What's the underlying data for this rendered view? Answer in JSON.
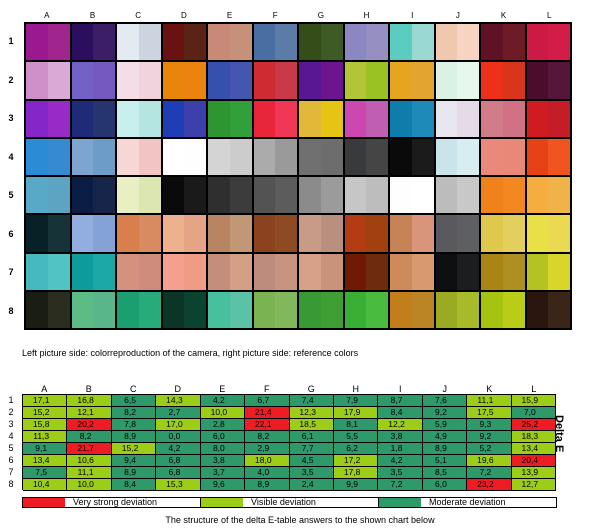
{
  "chart": {
    "columns": [
      "A",
      "B",
      "C",
      "D",
      "E",
      "F",
      "G",
      "H",
      "I",
      "J",
      "K",
      "L"
    ],
    "rows": [
      "1",
      "2",
      "3",
      "4",
      "5",
      "6",
      "7",
      "8"
    ],
    "patches": [
      [
        [
          "#9a1990",
          "#a0268e"
        ],
        [
          "#2c0e5e",
          "#3b1e66"
        ],
        [
          "#e4eaf2",
          "#ccd4df"
        ],
        [
          "#6a1111",
          "#5a2315"
        ],
        [
          "#c88a77",
          "#c79079"
        ],
        [
          "#4a6ea1",
          "#5a7ca7"
        ],
        [
          "#354d18",
          "#3e5b25"
        ],
        [
          "#8a87c2",
          "#9590c1"
        ],
        [
          "#5dccc0",
          "#9ad9d1"
        ],
        [
          "#f0c8b0",
          "#f7d3c2"
        ],
        [
          "#5e1224",
          "#6d1b26"
        ],
        [
          "#cc1a45",
          "#d41c48"
        ]
      ],
      [
        [
          "#cf8fc8",
          "#dba9d6"
        ],
        [
          "#7262c5",
          "#7559c0"
        ],
        [
          "#f3dde6",
          "#f0d3dc"
        ],
        [
          "#e8850b",
          "#ec830f"
        ],
        [
          "#3650ad",
          "#4556b0"
        ],
        [
          "#cf2b33",
          "#c93a48"
        ],
        [
          "#5a1793",
          "#6d148f"
        ],
        [
          "#b1c536",
          "#9ac223"
        ],
        [
          "#e5a520",
          "#e3a430"
        ],
        [
          "#d9f2e3",
          "#e6f8ee"
        ],
        [
          "#ec3019",
          "#d8351c"
        ],
        [
          "#4a0e2c",
          "#55163a"
        ]
      ],
      [
        [
          "#8526c8",
          "#982ac8"
        ],
        [
          "#1e2b79",
          "#263470"
        ],
        [
          "#c8eeee",
          "#b4e5e0"
        ],
        [
          "#1f3db5",
          "#3b40ab"
        ],
        [
          "#2d9630",
          "#31a03a"
        ],
        [
          "#e9253a",
          "#f03855"
        ],
        [
          "#e1b838",
          "#e6c414"
        ],
        [
          "#cc47b0",
          "#c05eb1"
        ],
        [
          "#0e7dab",
          "#1e8aba"
        ],
        [
          "#e8e7f0",
          "#e4dbe7"
        ],
        [
          "#d27c8a",
          "#d17185"
        ],
        [
          "#d01b20",
          "#c41d27"
        ]
      ],
      [
        [
          "#2b8cd5",
          "#368bd0"
        ],
        [
          "#7ea5cf",
          "#6c9cc7"
        ],
        [
          "#f8d6d6",
          "#f3c4c4"
        ],
        [
          "#ffffff",
          "#fefefe"
        ],
        [
          "#d4d4d4",
          "#cccccc"
        ],
        [
          "#ababab",
          "#9a9a9a"
        ],
        [
          "#707070",
          "#6d6d6d"
        ],
        [
          "#393a3b",
          "#454545"
        ],
        [
          "#0a0a0a",
          "#1b1b1b"
        ],
        [
          "#c9e4ea",
          "#d7edf2"
        ],
        [
          "#e9897c",
          "#e98878"
        ],
        [
          "#e54216",
          "#f05520"
        ]
      ],
      [
        [
          "#58a9c8",
          "#5ca4c2"
        ],
        [
          "#0a1e45",
          "#17254a"
        ],
        [
          "#e9eec3",
          "#dce6b1"
        ],
        [
          "#0a0a0a",
          "#1a1a1a"
        ],
        [
          "#2f2f2f",
          "#3c3c3c"
        ],
        [
          "#535353",
          "#5c5c5c"
        ],
        [
          "#8b8b8b",
          "#9b9b9b"
        ],
        [
          "#c6c6c6",
          "#bdbdbd"
        ],
        [
          "#fefefe",
          "#ffffff"
        ],
        [
          "#bcbcbc",
          "#c8c8c8"
        ],
        [
          "#f0821b",
          "#f38820"
        ],
        [
          "#f4ad3e",
          "#f0b34a"
        ]
      ],
      [
        [
          "#082126",
          "#163438"
        ],
        [
          "#92aee0",
          "#84a2d6"
        ],
        [
          "#d97e4d",
          "#d88a60"
        ],
        [
          "#ecb18d",
          "#e5a486"
        ],
        [
          "#b98462",
          "#c19776"
        ],
        [
          "#8b421f",
          "#8e4b23"
        ],
        [
          "#c89a88",
          "#b9907f"
        ],
        [
          "#b43c14",
          "#a1410f"
        ],
        [
          "#c58356",
          "#d8957b"
        ],
        [
          "#5a5a5e",
          "#5e5f62"
        ],
        [
          "#e0c84e",
          "#e3cf5b"
        ],
        [
          "#e9df47",
          "#ecd952"
        ]
      ],
      [
        [
          "#45b9bd",
          "#52c3c5"
        ],
        [
          "#0e9b9b",
          "#1ba8a7"
        ],
        [
          "#d5917d",
          "#cf8b7b"
        ],
        [
          "#f3a08e",
          "#f09b84"
        ],
        [
          "#c48f7a",
          "#d39f86"
        ],
        [
          "#be8c7d",
          "#c8937f"
        ],
        [
          "#d7a088",
          "#c9937b"
        ],
        [
          "#701905",
          "#6f2b0e"
        ],
        [
          "#cd8b5b",
          "#d79a6e"
        ],
        [
          "#0d0f10",
          "#1b1d1e"
        ],
        [
          "#a98515",
          "#ad8f22"
        ],
        [
          "#b4c322",
          "#d9d52a"
        ]
      ],
      [
        [
          "#1a1d14",
          "#2b2d1e"
        ],
        [
          "#5dbb86",
          "#59b68a"
        ],
        [
          "#1b9f70",
          "#27ab7a"
        ],
        [
          "#0d3526",
          "#0b4331"
        ],
        [
          "#47c09e",
          "#5bc2a5"
        ],
        [
          "#7ab351",
          "#80b85b"
        ],
        [
          "#379a35",
          "#3f9f35"
        ],
        [
          "#3aaf36",
          "#49bb3f"
        ],
        [
          "#c17e1a",
          "#bb8425"
        ],
        [
          "#9aaa22",
          "#a6ba2a"
        ],
        [
          "#a7c311",
          "#b9cd18"
        ],
        [
          "#2a160f",
          "#3b2418"
        ]
      ]
    ]
  },
  "caption": "Left picture side: colorreproduction of the camera, right picture side: reference colors",
  "delta_e": {
    "title": "Delta E",
    "columns": [
      "A",
      "B",
      "C",
      "D",
      "E",
      "F",
      "G",
      "H",
      "I",
      "J",
      "K",
      "L"
    ],
    "rows": [
      "1",
      "2",
      "3",
      "4",
      "5",
      "6",
      "7",
      "8"
    ],
    "values": [
      [
        "17,1",
        "16,8",
        "6,5",
        "14,3",
        "4,2",
        "6,7",
        "7,4",
        "7,9",
        "8,7",
        "7,6",
        "11,1",
        "15,9"
      ],
      [
        "15,2",
        "12,1",
        "8,2",
        "2,7",
        "10,0",
        "21,4",
        "12,3",
        "17,9",
        "8,4",
        "9,2",
        "17,5",
        "7,0"
      ],
      [
        "15,8",
        "20,2",
        "7,8",
        "17,0",
        "2,8",
        "22,1",
        "18,5",
        "8,1",
        "12,2",
        "5,9",
        "9,3",
        "25,2"
      ],
      [
        "11,3",
        "8,2",
        "8,9",
        "0,0",
        "6,0",
        "8,2",
        "6,1",
        "5,5",
        "3,8",
        "4,9",
        "9,2",
        "18,3"
      ],
      [
        "9,1",
        "21,7",
        "15,2",
        "4,2",
        "8,0",
        "2,9",
        "7,7",
        "6,2",
        "1,8",
        "8,9",
        "5,2",
        "13,4"
      ],
      [
        "13,4",
        "10,6",
        "9,4",
        "6,8",
        "3,8",
        "18,0",
        "4,5",
        "17,2",
        "4,2",
        "5,1",
        "19,6",
        "20,4"
      ],
      [
        "7,5",
        "11,1",
        "8,9",
        "6,8",
        "3,7",
        "4,0",
        "3,5",
        "17,8",
        "3,5",
        "8,5",
        "7,2",
        "13,9"
      ],
      [
        "10,4",
        "10,0",
        "8,4",
        "15,3",
        "9,6",
        "8,9",
        "2,4",
        "9,9",
        "7,2",
        "6,0",
        "23,2",
        "12,7"
      ]
    ],
    "levels": [
      [
        "visible",
        "visible",
        "moderate",
        "visible",
        "moderate",
        "moderate",
        "moderate",
        "moderate",
        "moderate",
        "moderate",
        "visible",
        "visible"
      ],
      [
        "visible",
        "visible",
        "moderate",
        "moderate",
        "visible",
        "strong",
        "visible",
        "visible",
        "moderate",
        "moderate",
        "visible",
        "moderate"
      ],
      [
        "visible",
        "strong",
        "moderate",
        "visible",
        "moderate",
        "strong",
        "visible",
        "moderate",
        "visible",
        "moderate",
        "moderate",
        "strong"
      ],
      [
        "visible",
        "moderate",
        "moderate",
        "moderate",
        "moderate",
        "moderate",
        "moderate",
        "moderate",
        "moderate",
        "moderate",
        "moderate",
        "visible"
      ],
      [
        "moderate",
        "strong",
        "visible",
        "moderate",
        "moderate",
        "moderate",
        "moderate",
        "moderate",
        "moderate",
        "moderate",
        "moderate",
        "visible"
      ],
      [
        "visible",
        "visible",
        "moderate",
        "moderate",
        "moderate",
        "visible",
        "moderate",
        "visible",
        "moderate",
        "moderate",
        "visible",
        "strong"
      ],
      [
        "moderate",
        "visible",
        "moderate",
        "moderate",
        "moderate",
        "moderate",
        "moderate",
        "visible",
        "moderate",
        "moderate",
        "moderate",
        "visible"
      ],
      [
        "visible",
        "visible",
        "moderate",
        "visible",
        "moderate",
        "moderate",
        "moderate",
        "moderate",
        "moderate",
        "moderate",
        "strong",
        "visible"
      ]
    ]
  },
  "legend": [
    {
      "label": "Very strong deviation",
      "color": "#ee1d24"
    },
    {
      "label": "Visible deviation",
      "color": "#9ccd17"
    },
    {
      "label": "Moderate deviation",
      "color": "#2e9a6a"
    }
  ],
  "note": "The structure of the delta E-table answers to the shown chart below"
}
